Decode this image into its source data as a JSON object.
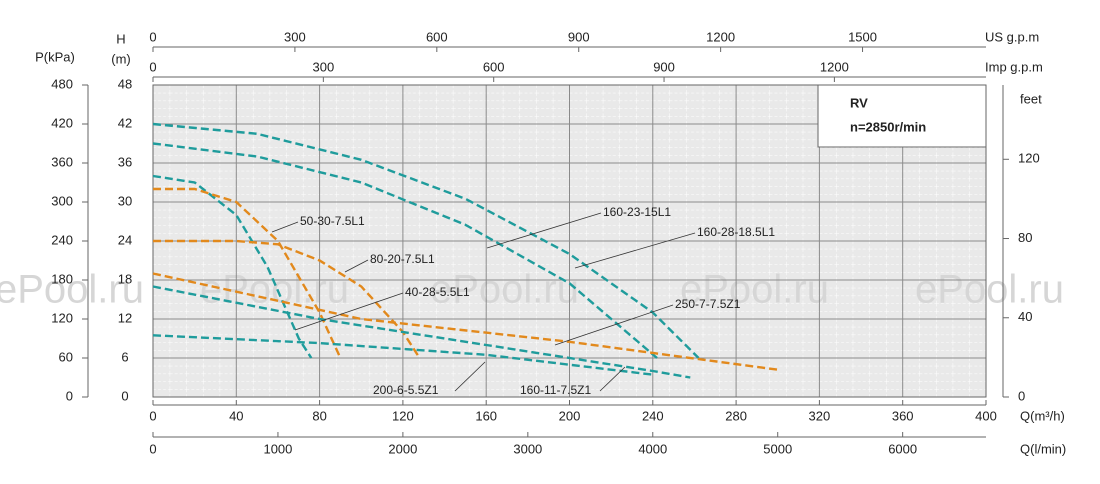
{
  "chart_data": {
    "type": "line",
    "watermark": "ePool.ru",
    "info_box": {
      "title": "RV",
      "subtitle": "n=2850r/min"
    },
    "xlabel": "Q(m³/h)",
    "xlim": [
      0,
      400
    ],
    "xticks": [
      0,
      40,
      80,
      120,
      160,
      200,
      240,
      280,
      320,
      360,
      400
    ],
    "ylabel": "H",
    "ylabel_unit": "(m)",
    "ylim": [
      0,
      48
    ],
    "yticks": [
      0,
      6,
      12,
      18,
      24,
      30,
      36,
      42,
      48
    ],
    "grid": true,
    "p_axis": {
      "label": "P(kPa)",
      "lim": [
        0,
        480
      ],
      "ticks": [
        0,
        60,
        120,
        180,
        240,
        300,
        360,
        420,
        480
      ]
    },
    "y2label": "feet",
    "y2lim": [
      0,
      157.5
    ],
    "y2ticks": [
      0,
      40,
      80,
      120
    ],
    "top_axes": [
      {
        "label": "US g.p.m",
        "lim": [
          0,
          1761
        ],
        "ticks": [
          0,
          300,
          600,
          900,
          1200,
          1500
        ]
      },
      {
        "label": "Imp g.p.m",
        "lim": [
          0,
          1467
        ],
        "ticks": [
          0,
          300,
          600,
          900,
          1200
        ]
      }
    ],
    "bottom_axis2": {
      "label": "Q(l/min)",
      "lim": [
        0,
        6667
      ],
      "ticks": [
        0,
        1000,
        2000,
        3000,
        4000,
        5000,
        6000
      ]
    },
    "series": [
      {
        "name": "160-28-18.5L1",
        "color": "#1f9c9c",
        "x": [
          0,
          50,
          100,
          150,
          200,
          240,
          262
        ],
        "values": [
          42,
          40.5,
          36.5,
          30.5,
          22,
          13,
          6
        ]
      },
      {
        "name": "160-23-15L1",
        "color": "#1f9c9c",
        "x": [
          0,
          50,
          100,
          150,
          200,
          242
        ],
        "values": [
          39,
          37,
          33,
          26.5,
          17.5,
          6
        ]
      },
      {
        "name": "40-28-5.5L1",
        "color": "#1f9c9c",
        "x": [
          0,
          20,
          40,
          55,
          70,
          76
        ],
        "values": [
          34,
          33,
          28,
          20,
          9,
          6
        ]
      },
      {
        "name": "50-30-7.5L1",
        "color": "#e2891c",
        "x": [
          0,
          20,
          40,
          60,
          80,
          90
        ],
        "values": [
          32,
          32,
          30,
          24,
          13,
          6
        ]
      },
      {
        "name": "80-20-7.5L1",
        "color": "#e2891c",
        "x": [
          0,
          40,
          60,
          80,
          100,
          120,
          128
        ],
        "values": [
          24,
          24,
          23.5,
          21,
          17,
          10,
          6
        ]
      },
      {
        "name": "250-7-7.5Z1",
        "color": "#e2891c",
        "x": [
          0,
          100,
          200,
          300
        ],
        "values": [
          19,
          12,
          8.5,
          4.2
        ]
      },
      {
        "name": "160-11-7.5Z1",
        "color": "#1f9c9c",
        "x": [
          0,
          80,
          160,
          240,
          258
        ],
        "values": [
          17,
          12,
          8,
          4,
          3
        ]
      },
      {
        "name": "200-6-5.5Z1",
        "color": "#1f9c9c",
        "x": [
          0,
          80,
          160,
          241
        ],
        "values": [
          9.5,
          8.3,
          6.5,
          3.4
        ]
      }
    ]
  }
}
